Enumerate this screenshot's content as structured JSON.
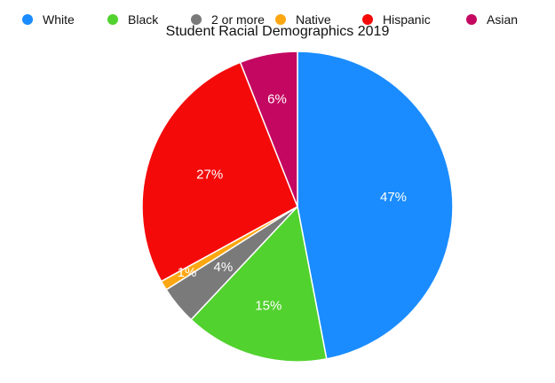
{
  "chart_data": {
    "type": "pie",
    "title": "Student Racial Demographics 2019",
    "legend_position": "top",
    "slices": [
      {
        "name": "White",
        "value": 47,
        "label": "47%",
        "color": "#1a8cff"
      },
      {
        "name": "Black",
        "value": 15,
        "label": "15%",
        "color": "#52d22f"
      },
      {
        "name": "2 or more",
        "value": 4,
        "label": "4%",
        "color": "#7a7a7a"
      },
      {
        "name": "Native",
        "value": 1,
        "label": "1%",
        "color": "#fca611"
      },
      {
        "name": "Hispanic",
        "value": 27,
        "label": "27%",
        "color": "#f50a0a"
      },
      {
        "name": "Asian",
        "value": 6,
        "label": "6%",
        "color": "#c40861"
      }
    ]
  }
}
